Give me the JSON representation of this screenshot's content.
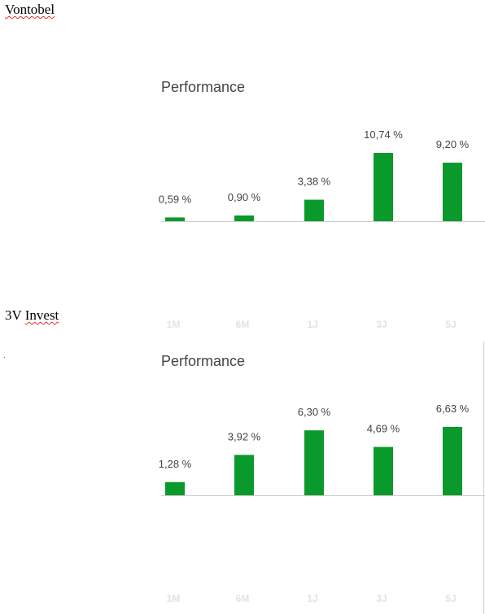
{
  "headings": {
    "first": "Vontobel",
    "second_prefix": "3V ",
    "second_word": "Invest"
  },
  "colors": {
    "bar": "#0a9a2b",
    "baseline": "#cccccc",
    "category_label": "#e2e2e2"
  },
  "chart_data": [
    {
      "type": "bar",
      "title": "Performance",
      "categories": [
        "1M",
        "6M",
        "1J",
        "3J",
        "5J"
      ],
      "values": [
        0.59,
        0.9,
        3.38,
        10.74,
        9.2
      ],
      "value_labels": [
        "0,59 %",
        "0,90 %",
        "3,38 %",
        "10,74 %",
        "9,20 %"
      ],
      "xlabel": "",
      "ylabel": "",
      "ylim": [
        0,
        10.74
      ],
      "grid": false,
      "legend": "none"
    },
    {
      "type": "bar",
      "title": "Performance",
      "categories": [
        "1M",
        "6M",
        "1J",
        "3J",
        "5J"
      ],
      "values": [
        1.28,
        3.92,
        6.3,
        4.69,
        6.63
      ],
      "value_labels": [
        "1,28 %",
        "3,92 %",
        "6,30 %",
        "4,69 %",
        "6,63 %"
      ],
      "xlabel": "",
      "ylabel": "",
      "ylim": [
        0,
        6.63
      ],
      "grid": false,
      "legend": "none"
    }
  ]
}
